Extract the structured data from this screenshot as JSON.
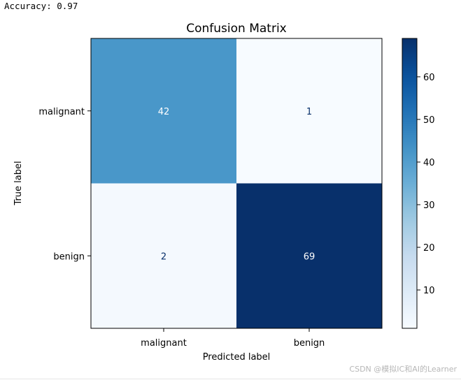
{
  "output": {
    "accuracy_text": "Accuracy: 0.97"
  },
  "watermark": "CSDN @模拟IC和AI的Learner",
  "chart_data": {
    "type": "heatmap",
    "title": "Confusion Matrix",
    "xlabel": "Predicted label",
    "ylabel": "True label",
    "x_categories": [
      "malignant",
      "benign"
    ],
    "y_categories": [
      "malignant",
      "benign"
    ],
    "values": [
      [
        42,
        1
      ],
      [
        2,
        69
      ]
    ],
    "colormap": "Blues",
    "colorbar": {
      "min": 1,
      "max": 69,
      "ticks": [
        10,
        20,
        30,
        40,
        50,
        60
      ]
    },
    "text_colors": {
      "dark_cell": "#ffffff",
      "light_cell": "#08306b"
    },
    "colors": {
      "low": "#f7fbff",
      "high": "#08306b"
    }
  }
}
